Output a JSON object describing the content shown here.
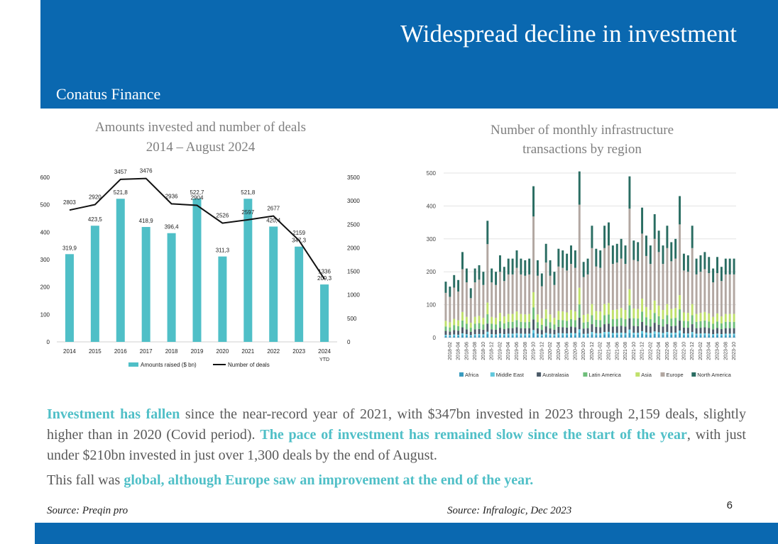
{
  "header": {
    "title": "Widespread decline in investment",
    "brand": "Conatus Finance"
  },
  "chart_data": [
    {
      "type": "bar",
      "title_line1": "Amounts invested and number of deals",
      "title_line2": "2014 – August 2024",
      "categories": [
        "2014",
        "2015",
        "2016",
        "2017",
        "2018",
        "2019",
        "2020",
        "2021",
        "2022",
        "2023",
        "2024"
      ],
      "category_sublabels": [
        "",
        "",
        "",
        "",
        "",
        "",
        "",
        "",
        "",
        "",
        "YTD"
      ],
      "bar_series": {
        "name": "Amounts raised ($ bn)",
        "values": [
          319.9,
          423.5,
          521.8,
          418.9,
          396.4,
          522.7,
          311.3,
          521.8,
          420.4,
          347.3,
          209.3
        ],
        "labels": [
          "319,9",
          "423,5",
          "521,8",
          "418,9",
          "396,4",
          "522,7",
          "311,3",
          "521,8",
          "420,4",
          "347,3",
          "209,3"
        ],
        "color": "#4fbfc7"
      },
      "line_series": {
        "name": "Number of deals",
        "values": [
          2803,
          2920,
          3457,
          3476,
          2936,
          2904,
          2526,
          2597,
          2677,
          2159,
          1336
        ],
        "labels": [
          "2803",
          "2920",
          "3457",
          "3476",
          "2936",
          "2904",
          "2526",
          "2597",
          "2677",
          "2159",
          "1336"
        ],
        "color": "#111111"
      },
      "y_left": {
        "min": 0,
        "max": 600,
        "ticks": [
          "0",
          "100",
          "200",
          "300",
          "400",
          "500",
          "600"
        ]
      },
      "y_right": {
        "min": 0,
        "max": 3500,
        "ticks": [
          "0",
          "500",
          "1000",
          "1500",
          "2000",
          "2500",
          "3000",
          "3500"
        ]
      }
    },
    {
      "type": "bar",
      "stacked": true,
      "title_line1": "Number of monthly infrastructure",
      "title_line2": "transactions by region",
      "y_ticks": [
        "0",
        "100",
        "200",
        "300",
        "400",
        "500"
      ],
      "y_max": 500,
      "categories": [
        "2018-01",
        "2018-02",
        "2018-03",
        "2018-04",
        "2018-05",
        "2018-06",
        "2018-07",
        "2018-08",
        "2018-09",
        "2018-10",
        "2018-11",
        "2018-12",
        "2019-01",
        "2019-02",
        "2019-03",
        "2019-04",
        "2019-05",
        "2019-06",
        "2019-07",
        "2019-08",
        "2019-09",
        "2019-10",
        "2019-11",
        "2019-12",
        "2020-01",
        "2020-02",
        "2020-03",
        "2020-04",
        "2020-05",
        "2020-06",
        "2020-07",
        "2020-08",
        "2020-09",
        "2020-10",
        "2020-11",
        "2020-12",
        "2021-01",
        "2021-02",
        "2021-03",
        "2021-04",
        "2021-05",
        "2021-06",
        "2021-07",
        "2021-08",
        "2021-09",
        "2021-10",
        "2021-11",
        "2021-12",
        "2022-01",
        "2022-02",
        "2022-03",
        "2022-04",
        "2022-05",
        "2022-06",
        "2022-07",
        "2022-08",
        "2022-09",
        "2022-10",
        "2022-11",
        "2022-12",
        "2023-01",
        "2023-02",
        "2023-03",
        "2023-04",
        "2023-05",
        "2023-06",
        "2023-07",
        "2023-08",
        "2023-09",
        "2023-10"
      ],
      "totals": [
        170,
        155,
        190,
        175,
        260,
        210,
        150,
        210,
        220,
        200,
        355,
        210,
        200,
        250,
        215,
        240,
        240,
        265,
        240,
        235,
        240,
        460,
        235,
        195,
        285,
        235,
        200,
        270,
        265,
        255,
        280,
        265,
        505,
        230,
        240,
        340,
        270,
        265,
        340,
        350,
        280,
        285,
        300,
        280,
        490,
        295,
        290,
        395,
        310,
        280,
        375,
        325,
        280,
        340,
        290,
        300,
        430,
        255,
        250,
        340,
        240,
        250,
        260,
        245,
        210,
        245,
        215,
        240,
        240,
        240
      ],
      "series": [
        {
          "name": "Africa",
          "color": "#3a9bbf",
          "shares": [
            0.03
          ]
        },
        {
          "name": "Middle East",
          "color": "#62c8dd",
          "shares": [
            0.02
          ]
        },
        {
          "name": "Australasia",
          "color": "#4b5a68",
          "shares": [
            0.07
          ]
        },
        {
          "name": "Latin America",
          "color": "#6ebe7a",
          "shares": [
            0.08
          ]
        },
        {
          "name": "Asia",
          "color": "#c0e06c",
          "shares": [
            0.1
          ]
        },
        {
          "name": "Europe",
          "color": "#b2a7a1",
          "shares": [
            0.5
          ]
        },
        {
          "name": "North America",
          "color": "#2a6d62",
          "shares": [
            0.2
          ]
        }
      ]
    }
  ],
  "body": {
    "p1_hl1": "Investment has fallen",
    "p1_t1": " since the near-record year of 2021, with $347bn invested in 2023 through 2,159 deals, slightly higher than in 2020 (Covid period). ",
    "p1_hl2": "The pace of investment has remained slow since the start of the year",
    "p1_t2": ", with just under $210bn invested in just over 1,300 deals by the end of August.",
    "p2_t1": "This fall was ",
    "p2_hl1": "global, although Europe saw an improvement at the end of the year."
  },
  "footer": {
    "source_left": "Source: Preqin pro",
    "source_right": "Source: Infralogic, Dec 2023",
    "page_number": "6"
  }
}
